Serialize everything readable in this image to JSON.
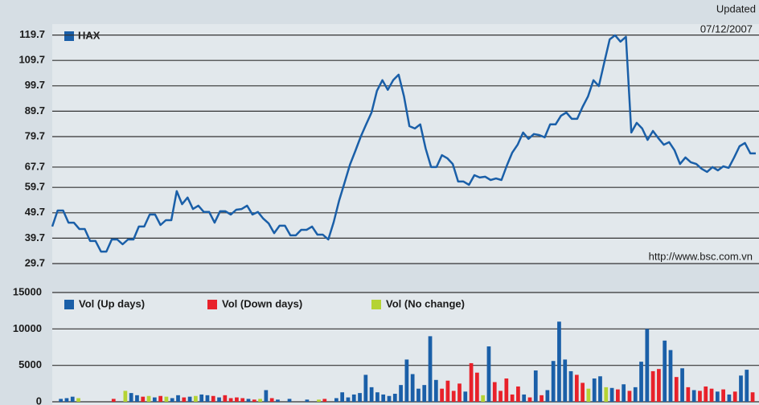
{
  "chart_data": [
    {
      "type": "line",
      "annotations": [
        "Updated",
        "07/12/2007",
        "http://www.bsc.com.vn"
      ],
      "series": [
        {
          "name": "HAX",
          "color": "#1a5fa8",
          "values": [
            44.3,
            50.6,
            50.6,
            45.8,
            45.8,
            43.3,
            43.3,
            38.6,
            38.6,
            34.4,
            34.4,
            39.2,
            39.2,
            37.3,
            39.2,
            39.2,
            44.3,
            44.3,
            49.0,
            49.0,
            44.9,
            46.8,
            46.8,
            58.2,
            53.1,
            55.7,
            51.2,
            52.5,
            50.0,
            50.0,
            45.8,
            50.3,
            50.3,
            49.0,
            50.9,
            51.2,
            52.5,
            49.0,
            50.0,
            47.4,
            45.5,
            41.7,
            44.6,
            44.6,
            40.8,
            40.8,
            43.0,
            43.0,
            44.3,
            41.1,
            41.1,
            39.2,
            46.0,
            54.4,
            61.5,
            68.6,
            74.0,
            79.7,
            84.5,
            89.2,
            97.7,
            101.9,
            98.1,
            101.9,
            104.1,
            95.5,
            83.8,
            82.9,
            84.5,
            75.0,
            67.7,
            67.7,
            72.4,
            71.2,
            68.9,
            62.0,
            62.0,
            60.7,
            64.5,
            63.6,
            63.9,
            62.6,
            63.2,
            62.6,
            68.3,
            73.4,
            76.5,
            81.3,
            78.8,
            80.7,
            80.3,
            79.4,
            84.5,
            84.5,
            87.9,
            89.2,
            86.7,
            86.7,
            91.4,
            95.5,
            101.9,
            99.6,
            108.8,
            118.0,
            119.6,
            117.1,
            119.0,
            81.3,
            85.1,
            82.9,
            78.4,
            81.9,
            79.1,
            76.5,
            77.5,
            74.3,
            68.9,
            71.5,
            69.6,
            68.9,
            67.0,
            65.8,
            67.7,
            66.4,
            68.0,
            67.4,
            71.5,
            75.9,
            77.2,
            73.1,
            73.1
          ]
        }
      ],
      "ylim": [
        29.7,
        124
      ],
      "yticks": [
        29.7,
        39.7,
        49.7,
        59.7,
        67.7,
        79.7,
        89.7,
        99.7,
        109.7,
        119.7
      ],
      "grid": true
    },
    {
      "type": "bar",
      "ylim": [
        0,
        15000
      ],
      "yticks": [
        0,
        5000,
        10000,
        15000
      ],
      "grid": true,
      "series": [
        {
          "name": "Vol (Up days)",
          "color": "#1a5fa8",
          "values": [
            null,
            400,
            500,
            700,
            null,
            null,
            null,
            null,
            null,
            null,
            null,
            null,
            null,
            1200,
            900,
            null,
            null,
            600,
            null,
            null,
            500,
            900,
            null,
            700,
            null,
            1000,
            900,
            null,
            600,
            null,
            null,
            null,
            null,
            400,
            null,
            null,
            1600,
            null,
            300,
            null,
            400,
            null,
            null,
            300,
            null,
            null,
            null,
            null,
            500,
            1300,
            600,
            1000,
            1200,
            3700,
            2000,
            1300,
            1000,
            800,
            1100,
            2300,
            5800,
            3800,
            1800,
            2300,
            9000,
            3000,
            null,
            null,
            null,
            null,
            1400,
            null,
            null,
            null,
            7600,
            null,
            null,
            null,
            null,
            null,
            1000,
            null,
            4300,
            null,
            1600,
            5600,
            11000,
            5800,
            4200,
            null,
            null,
            null,
            3200,
            3500,
            null,
            1900,
            null,
            2400,
            null,
            2000,
            5500,
            10000,
            null,
            null,
            8400,
            7100,
            null,
            4600,
            null,
            1600,
            null,
            null,
            null,
            1400,
            null,
            1000,
            null,
            3600,
            4400,
            null
          ]
        },
        {
          "name": "Vol (Down days)",
          "color": "#e8212a",
          "values": [
            null,
            null,
            null,
            null,
            null,
            null,
            null,
            null,
            null,
            null,
            400,
            null,
            null,
            null,
            null,
            700,
            null,
            null,
            800,
            null,
            null,
            null,
            600,
            null,
            null,
            null,
            null,
            800,
            null,
            900,
            500,
            600,
            500,
            null,
            300,
            null,
            null,
            500,
            null,
            null,
            null,
            null,
            null,
            null,
            null,
            null,
            400,
            null,
            null,
            null,
            null,
            null,
            null,
            null,
            null,
            null,
            null,
            null,
            null,
            null,
            null,
            null,
            null,
            null,
            null,
            null,
            1800,
            2900,
            1500,
            2500,
            null,
            5300,
            4000,
            null,
            null,
            2700,
            1500,
            3200,
            1000,
            2100,
            null,
            600,
            null,
            900,
            null,
            null,
            null,
            null,
            null,
            3700,
            2600,
            null,
            null,
            null,
            null,
            null,
            1700,
            null,
            1500,
            null,
            null,
            null,
            4200,
            4500,
            null,
            null,
            3400,
            null,
            2000,
            null,
            1500,
            2100,
            1800,
            null,
            1700,
            null,
            1400,
            null,
            null,
            1300
          ]
        },
        {
          "name": "Vol (No change)",
          "color": "#b5d334",
          "values": [
            null,
            null,
            null,
            null,
            500,
            null,
            null,
            null,
            null,
            null,
            null,
            null,
            1500,
            null,
            null,
            null,
            800,
            null,
            null,
            700,
            null,
            null,
            null,
            null,
            800,
            null,
            null,
            null,
            null,
            null,
            null,
            null,
            null,
            null,
            null,
            400,
            null,
            null,
            null,
            null,
            null,
            null,
            null,
            null,
            null,
            300,
            null,
            null,
            null,
            null,
            null,
            null,
            null,
            null,
            null,
            null,
            null,
            null,
            null,
            null,
            null,
            null,
            null,
            null,
            null,
            null,
            null,
            null,
            null,
            null,
            null,
            null,
            null,
            900,
            null,
            null,
            null,
            null,
            null,
            null,
            null,
            null,
            null,
            null,
            null,
            null,
            null,
            null,
            null,
            null,
            null,
            1800,
            null,
            null,
            2000,
            null,
            null,
            null,
            null,
            null,
            null,
            null,
            null,
            null,
            null,
            null,
            null,
            null,
            null,
            null,
            null,
            null,
            null,
            null,
            null,
            null,
            null,
            null,
            null,
            null
          ]
        }
      ]
    }
  ]
}
